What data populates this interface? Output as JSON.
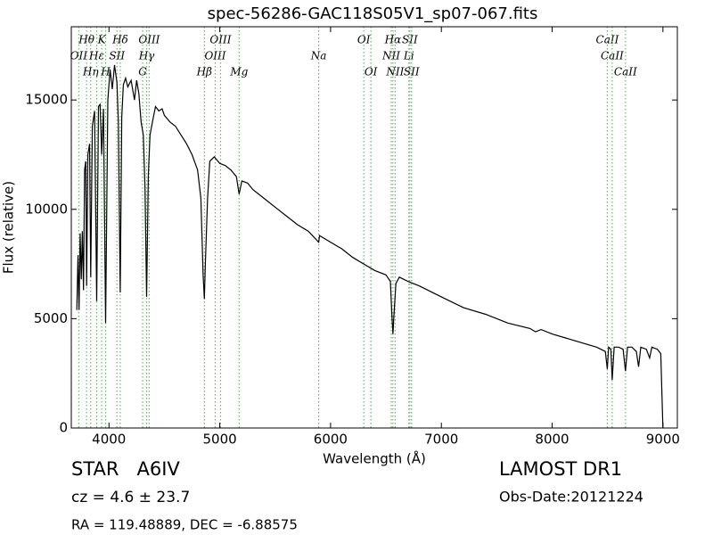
{
  "chart_data": {
    "type": "line",
    "title": "spec-56286-GAC118S05V1_sp07-067.fits",
    "xlabel": "Wavelength (Å)",
    "ylabel": "Flux (relative)",
    "xlim": [
      3660,
      9130
    ],
    "ylim": [
      0,
      18350
    ],
    "xticks": [
      4000,
      5000,
      6000,
      7000,
      8000,
      9000
    ],
    "yticks": [
      0,
      5000,
      10000,
      15000
    ],
    "x": [
      3710,
      3720,
      3730,
      3740,
      3750,
      3760,
      3770,
      3780,
      3790,
      3798,
      3810,
      3825,
      3835,
      3850,
      3870,
      3889,
      3905,
      3920,
      3934,
      3950,
      3970,
      3990,
      4010,
      4030,
      4050,
      4072,
      4085,
      4102,
      4115,
      4130,
      4150,
      4170,
      4200,
      4230,
      4250,
      4270,
      4290,
      4310,
      4325,
      4340,
      4355,
      4370,
      4400,
      4420,
      4450,
      4480,
      4500,
      4550,
      4600,
      4650,
      4700,
      4750,
      4800,
      4830,
      4850,
      4861,
      4870,
      4890,
      4910,
      4950,
      5000,
      5050,
      5100,
      5150,
      5175,
      5200,
      5250,
      5300,
      5400,
      5500,
      5600,
      5700,
      5800,
      5893,
      5900,
      6000,
      6100,
      6200,
      6300,
      6400,
      6500,
      6540,
      6555,
      6563,
      6570,
      6590,
      6620,
      6700,
      6800,
      7000,
      7200,
      7400,
      7600,
      7800,
      7850,
      7900,
      8000,
      8200,
      8400,
      8480,
      8498,
      8510,
      8530,
      8542,
      8560,
      8600,
      8640,
      8662,
      8680,
      8720,
      8760,
      8780,
      8800,
      8850,
      8880,
      8900,
      8950,
      8980,
      9000
    ],
    "series": [
      {
        "color": "#000000",
        "values": [
          5400,
          7900,
          5400,
          8900,
          6800,
          9000,
          6300,
          11800,
          12200,
          6500,
          12500,
          13000,
          6900,
          13800,
          14500,
          5800,
          14700,
          14800,
          12500,
          14600,
          4800,
          15000,
          16400,
          15500,
          16600,
          15800,
          14000,
          6200,
          14200,
          15700,
          16000,
          15600,
          15900,
          15000,
          15900,
          15300,
          14000,
          13400,
          11000,
          6000,
          11500,
          13400,
          14200,
          14700,
          14500,
          14600,
          14300,
          14000,
          13800,
          13400,
          13000,
          12500,
          11800,
          10500,
          7000,
          5900,
          7500,
          10500,
          12200,
          12400,
          12100,
          12000,
          11800,
          11500,
          10700,
          11300,
          11200,
          10900,
          10500,
          10100,
          9700,
          9300,
          9000,
          8500,
          8800,
          8500,
          8200,
          7800,
          7500,
          7200,
          7000,
          6700,
          5000,
          4300,
          5000,
          6600,
          6900,
          6700,
          6500,
          6000,
          5500,
          5200,
          4800,
          4550,
          4400,
          4500,
          4300,
          4000,
          3700,
          3500,
          2700,
          3700,
          3600,
          2200,
          3700,
          3700,
          3600,
          2600,
          3700,
          3700,
          3500,
          2800,
          3700,
          3600,
          3200,
          3700,
          3600,
          3400,
          0
        ]
      }
    ],
    "lines": {
      "color": "#66bb66",
      "x": [
        3727,
        3798,
        3835,
        3889,
        3934,
        3970,
        4072,
        4102,
        4304,
        4340,
        4363,
        4861,
        4959,
        5007,
        5175,
        5893,
        6300,
        6364,
        6548,
        6563,
        6583,
        6707,
        6716,
        6731,
        8498,
        8542,
        8662
      ],
      "labels": [
        "OII",
        "Hθ",
        "Hη",
        "Hε",
        "K",
        "H",
        "SII",
        "Hδ",
        "G",
        "Hγ",
        "OIII",
        "Hβ",
        "OIII",
        "OIII",
        "Mg",
        "Na",
        "OI",
        "OI",
        "NII",
        "Hα",
        "NII",
        "Li",
        "SII",
        "SII",
        "CaII",
        "CaII",
        "CaII"
      ]
    },
    "info": {
      "object": "STAR   A6IV",
      "redshift": "cz = 4.6 ± 23.7",
      "coords": "RA = 119.48889, DEC = -6.88575",
      "survey": "LAMOST DR1",
      "date": "Obs-Date:20121224"
    }
  }
}
